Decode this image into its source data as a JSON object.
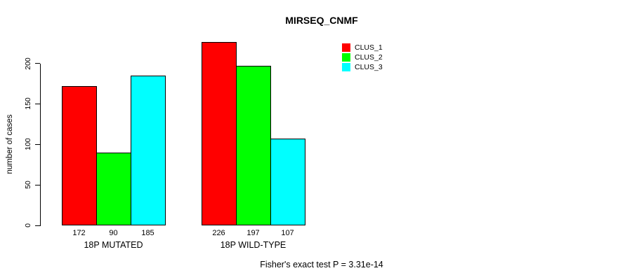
{
  "title": "MIRSEQ_CNMF",
  "footer": "Fisher's exact test P = 3.31e-14",
  "y_axis": {
    "label": "number of cases",
    "ticks": [
      0,
      50,
      100,
      150,
      200
    ]
  },
  "legend": {
    "items": [
      {
        "label": "CLUS_1",
        "color": "#ff0000"
      },
      {
        "label": "CLUS_2",
        "color": "#00ff00"
      },
      {
        "label": "CLUS_3",
        "color": "#00ffff"
      }
    ]
  },
  "chart_data": {
    "type": "bar",
    "title": "MIRSEQ_CNMF",
    "xlabel": "",
    "ylabel": "number of cases",
    "categories": [
      "18P MUTATED",
      "18P WILD-TYPE"
    ],
    "series": [
      {
        "name": "CLUS_1",
        "color": "#ff0000",
        "values": [
          172,
          226
        ]
      },
      {
        "name": "CLUS_2",
        "color": "#00ff00",
        "values": [
          90,
          197
        ]
      },
      {
        "name": "CLUS_3",
        "color": "#00ffff",
        "values": [
          185,
          107
        ]
      }
    ],
    "y_ticks": [
      0,
      50,
      100,
      150,
      200
    ],
    "ylim": [
      0,
      230
    ],
    "grid": false,
    "bar_value_labels_shown": true,
    "legend_position": "top-right",
    "annotation": "Fisher's exact test P = 3.31e-14"
  }
}
